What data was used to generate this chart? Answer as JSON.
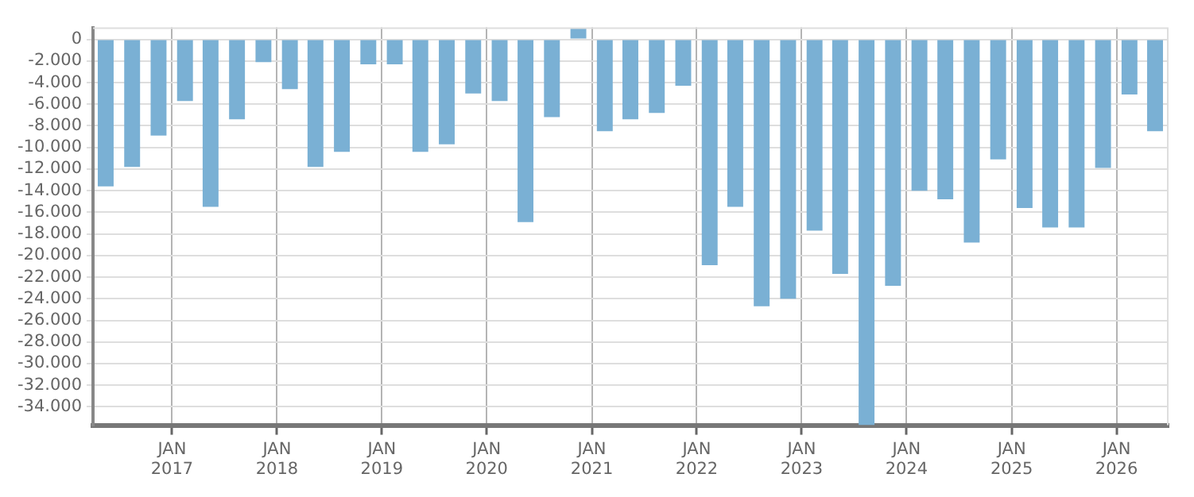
{
  "chart_data": {
    "type": "bar",
    "color": "#7ab0d4",
    "x": [
      "2016-05-15",
      "2016-08-15",
      "2016-11-15",
      "2017-02-15",
      "2017-05-15",
      "2017-08-15",
      "2017-11-15",
      "2018-02-15",
      "2018-05-15",
      "2018-08-15",
      "2018-11-15",
      "2019-02-15",
      "2019-05-15",
      "2019-08-15",
      "2019-11-15",
      "2020-02-15",
      "2020-05-15",
      "2020-08-15",
      "2020-11-15",
      "2021-02-15",
      "2021-05-15",
      "2021-08-15",
      "2021-11-15",
      "2022-02-15",
      "2022-05-15",
      "2022-08-15",
      "2022-11-15",
      "2023-02-15",
      "2023-05-15",
      "2023-08-15",
      "2023-11-15",
      "2024-02-15",
      "2024-05-15",
      "2024-08-15",
      "2024-11-15",
      "2025-02-15",
      "2025-05-15",
      "2025-08-15",
      "2025-11-15",
      "2026-02-15",
      "2026-05-15"
    ],
    "values": [
      -13600,
      -11800,
      -8900,
      -5700,
      -15500,
      -7400,
      -2100,
      -4600,
      -11800,
      -10400,
      -2300,
      -2300,
      -10400,
      -9700,
      -5000,
      -5700,
      -16900,
      -7200,
      1000,
      -8500,
      -7400,
      -6800,
      -4300,
      -20900,
      -15500,
      -24700,
      -24000,
      -17700,
      -21700,
      -35700,
      -22800,
      -14000,
      -14800,
      -18800,
      -11100,
      -15600,
      -17400,
      -17400,
      -11900,
      -5100,
      -8500
    ],
    "xlim": [
      "2016-04-01",
      "2026-07-01"
    ],
    "xticks": [
      {
        "value": "2017-01-01",
        "label": "JAN 2017"
      },
      {
        "value": "2018-01-01",
        "label": "JAN 2018"
      },
      {
        "value": "2019-01-01",
        "label": "JAN 2019"
      },
      {
        "value": "2020-01-01",
        "label": "JAN 2020"
      },
      {
        "value": "2021-01-01",
        "label": "JAN 2021"
      },
      {
        "value": "2022-01-01",
        "label": "JAN 2022"
      },
      {
        "value": "2023-01-01",
        "label": "JAN 2023"
      },
      {
        "value": "2024-01-01",
        "label": "JAN 2024"
      },
      {
        "value": "2025-01-01",
        "label": "JAN 2025"
      },
      {
        "value": "2026-01-01",
        "label": "JAN 2026"
      }
    ],
    "ylim": [
      -35700,
      1100
    ],
    "yticks": [
      {
        "value": 0,
        "label": "0"
      },
      {
        "value": -2000,
        "label": "-2.000"
      },
      {
        "value": -4000,
        "label": "-4.000"
      },
      {
        "value": -6000,
        "label": "-6.000"
      },
      {
        "value": -8000,
        "label": "-8.000"
      },
      {
        "value": -10000,
        "label": "-10.000"
      },
      {
        "value": -12000,
        "label": "-12.000"
      },
      {
        "value": -14000,
        "label": "-14.000"
      },
      {
        "value": -16000,
        "label": "-16.000"
      },
      {
        "value": -18000,
        "label": "-18.000"
      },
      {
        "value": -20000,
        "label": "-20.000"
      },
      {
        "value": -22000,
        "label": "-22.000"
      },
      {
        "value": -24000,
        "label": "-24.000"
      },
      {
        "value": -26000,
        "label": "-26.000"
      },
      {
        "value": -28000,
        "label": "-28.000"
      },
      {
        "value": -30000,
        "label": "-30.000"
      },
      {
        "value": -32000,
        "label": "-32.000"
      },
      {
        "value": -34000,
        "label": "-34.000"
      }
    ],
    "grid": true,
    "legend": false
  }
}
